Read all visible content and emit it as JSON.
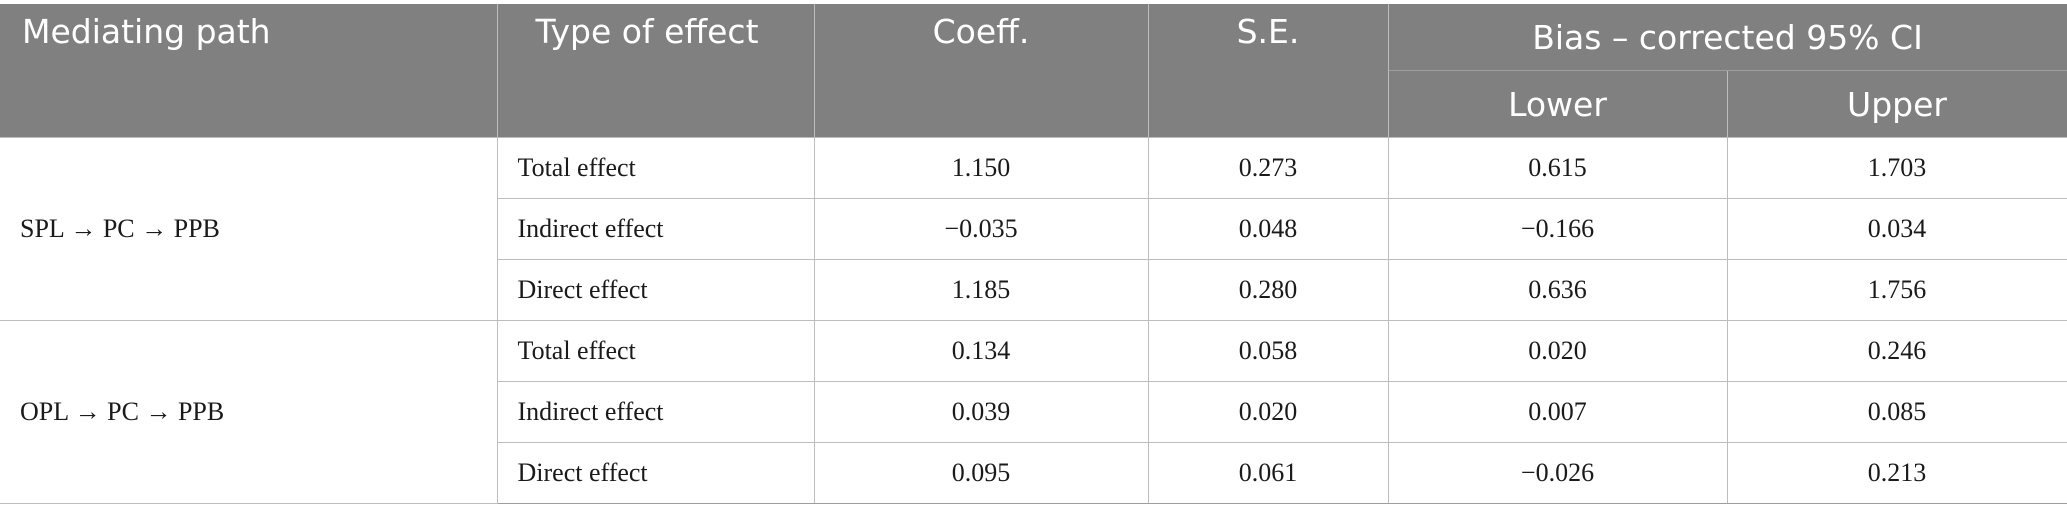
{
  "header": {
    "mediating_path": "Mediating path",
    "type_of_effect": "Type of effect",
    "coeff": "Coeff.",
    "se": "S.E.",
    "ci_group": "Bias – corrected 95% CI",
    "lower": "Lower",
    "upper": "Upper"
  },
  "groups": [
    {
      "path": "SPL → PC → PPB",
      "rows": [
        {
          "type": "Total effect",
          "coeff": "1.150",
          "se": "0.273",
          "lower": "0.615",
          "upper": "1.703"
        },
        {
          "type": "Indirect effect",
          "coeff": "−0.035",
          "se": "0.048",
          "lower": "−0.166",
          "upper": "0.034"
        },
        {
          "type": "Direct effect",
          "coeff": "1.185",
          "se": "0.280",
          "lower": "0.636",
          "upper": "1.756"
        }
      ]
    },
    {
      "path": "OPL → PC → PPB",
      "rows": [
        {
          "type": "Total effect",
          "coeff": "0.134",
          "se": "0.058",
          "lower": "0.020",
          "upper": "0.246"
        },
        {
          "type": "Indirect effect",
          "coeff": "0.039",
          "se": "0.020",
          "lower": "0.007",
          "upper": "0.085"
        },
        {
          "type": "Direct effect",
          "coeff": "0.095",
          "se": "0.061",
          "lower": "−0.026",
          "upper": "0.213"
        }
      ]
    }
  ]
}
